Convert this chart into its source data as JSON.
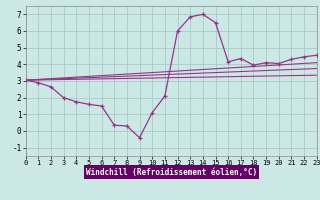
{
  "xlabel": "Windchill (Refroidissement éolien,°C)",
  "xlim": [
    0,
    23
  ],
  "ylim": [
    -1.5,
    7.5
  ],
  "xticks": [
    0,
    1,
    2,
    3,
    4,
    5,
    6,
    7,
    8,
    9,
    10,
    11,
    12,
    13,
    14,
    15,
    16,
    17,
    18,
    19,
    20,
    21,
    22,
    23
  ],
  "yticks": [
    -1,
    0,
    1,
    2,
    3,
    4,
    5,
    6,
    7
  ],
  "bg_color": "#cce8e4",
  "line_color": "#993388",
  "grid_color": "#a8cccc",
  "main_x": [
    0,
    1,
    2,
    3,
    4,
    5,
    6,
    7,
    8,
    9,
    10,
    11,
    12,
    13,
    14,
    15,
    16,
    17,
    18,
    19,
    20,
    21,
    22,
    23
  ],
  "main_y": [
    3.05,
    2.9,
    2.65,
    2.0,
    1.75,
    1.6,
    1.5,
    0.35,
    0.3,
    -0.4,
    1.1,
    2.1,
    6.0,
    6.85,
    7.0,
    6.5,
    4.15,
    4.35,
    3.95,
    4.1,
    4.05,
    4.3,
    4.45,
    4.55
  ],
  "line1_x": [
    0,
    23
  ],
  "line1_y": [
    3.05,
    3.35
  ],
  "line2_x": [
    0,
    23
  ],
  "line2_y": [
    3.05,
    3.75
  ],
  "line3_x": [
    0,
    23
  ],
  "line3_y": [
    3.05,
    4.1
  ]
}
